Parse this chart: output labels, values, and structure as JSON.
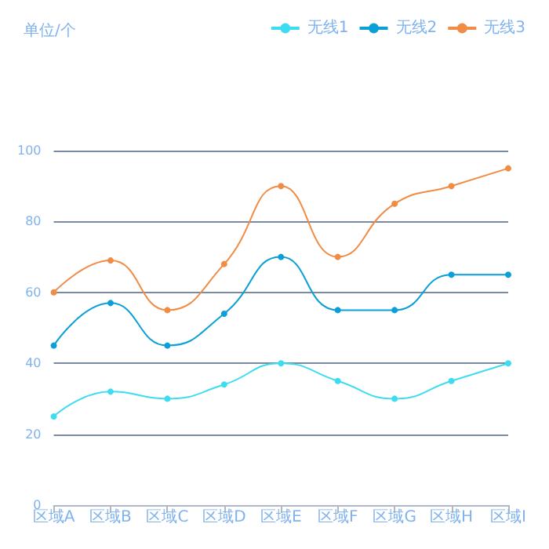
{
  "chart_data": {
    "type": "line",
    "annotations": [
      "单位/个"
    ],
    "categories": [
      "区域A",
      "区域B",
      "区域C",
      "区域D",
      "区域E",
      "区域F",
      "区域G",
      "区域H",
      "区域I"
    ],
    "series": [
      {
        "name": "无线1",
        "color": "#3ddcf0",
        "values": [
          25,
          32,
          30,
          34,
          40,
          35,
          30,
          35,
          40
        ]
      },
      {
        "name": "无线2",
        "color": "#0a9fd6",
        "values": [
          45,
          57,
          45,
          54,
          70,
          55,
          55,
          65,
          65
        ]
      },
      {
        "name": "无线3",
        "color": "#f08c46",
        "values": [
          60,
          69,
          55,
          68,
          90,
          70,
          85,
          90,
          95
        ]
      }
    ],
    "ylim": [
      0,
      100
    ],
    "yticks": [
      0,
      20,
      40,
      60,
      80,
      100
    ],
    "grid": "y",
    "legend": "top right",
    "marker": "circle",
    "line_style": "solid"
  }
}
